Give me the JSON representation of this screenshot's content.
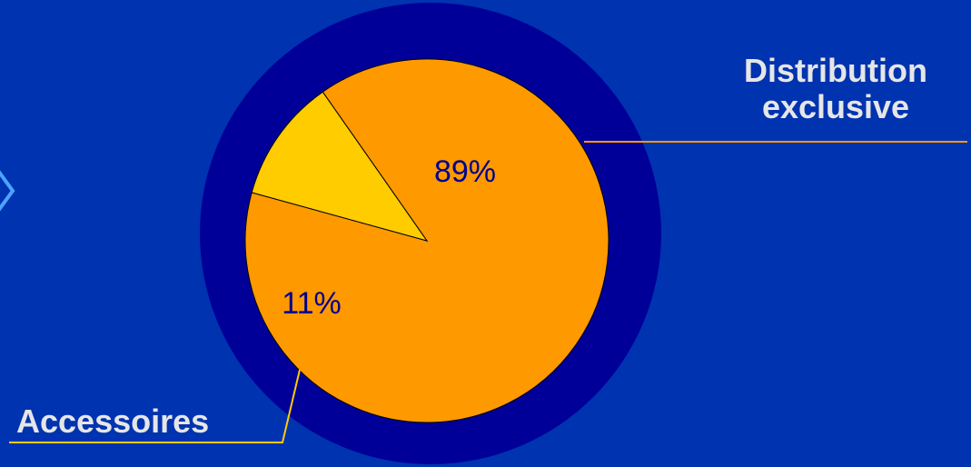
{
  "chart_data": {
    "type": "pie",
    "categories": [
      "Distribution exclusive",
      "Accessoires"
    ],
    "values": [
      89,
      11
    ],
    "value_labels": [
      "89%",
      "11%"
    ],
    "colors": {
      "Distribution exclusive": "#ff9900",
      "Accessoires": "#ffcc00"
    },
    "title": "",
    "labels": {
      "distribution": [
        "Distribution",
        "exclusive"
      ],
      "accessoires": "Accessoires"
    }
  },
  "theme": {
    "background": "#0033b0",
    "ring": "#000099",
    "label_text": "#e6e6e6",
    "pct_text": "#00008f",
    "leader_distribution": "#ff9900",
    "leader_accessoires": "#ffcc00",
    "decor_icon": "chevron-right-icon"
  }
}
